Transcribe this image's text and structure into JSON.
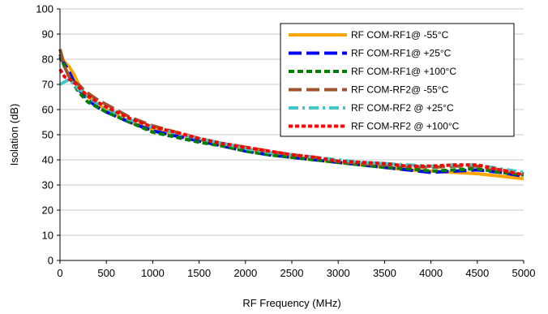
{
  "chart_data": {
    "type": "line",
    "title": "",
    "xlabel": "RF Frequency (MHz)",
    "ylabel": "Isolation (dB)",
    "xlim": [
      0,
      5000
    ],
    "ylim": [
      0,
      100
    ],
    "xticks": [
      0,
      500,
      1000,
      1500,
      2000,
      2500,
      3000,
      3500,
      4000,
      4500,
      5000
    ],
    "yticks": [
      0,
      10,
      20,
      30,
      40,
      50,
      60,
      70,
      80,
      90,
      100
    ],
    "grid": {
      "horizontal": true,
      "vertical": false
    },
    "legend_position": "top-right",
    "series": [
      {
        "name": "RF COM-RF1@ -55°C",
        "color": "#FFA500",
        "dash": "solid",
        "x": [
          0,
          50,
          100,
          150,
          200,
          250,
          300,
          400,
          500,
          750,
          1000,
          1250,
          1500,
          1750,
          2000,
          2250,
          2500,
          2750,
          3000,
          3250,
          3500,
          3750,
          4000,
          4250,
          4500,
          4750,
          5000
        ],
        "y": [
          80,
          79,
          77,
          74,
          70,
          67,
          65,
          62,
          60,
          55,
          52,
          50,
          48,
          46,
          44,
          42.5,
          41,
          40,
          39,
          38,
          37,
          36,
          35.5,
          35,
          34.5,
          33.5,
          32.5
        ]
      },
      {
        "name": "RF COM-RF1@ +25°C",
        "color": "#0000FF",
        "dash": "longdash",
        "x": [
          0,
          50,
          100,
          150,
          200,
          250,
          300,
          400,
          500,
          750,
          1000,
          1250,
          1500,
          1750,
          2000,
          2250,
          2500,
          2750,
          3000,
          3250,
          3500,
          3750,
          4000,
          4250,
          4500,
          4750,
          5000
        ],
        "y": [
          81,
          78,
          75,
          71,
          68,
          66,
          64,
          61,
          59,
          55,
          51.5,
          49.5,
          47.5,
          45.5,
          43.5,
          42,
          41,
          40,
          39,
          38,
          37,
          36,
          35,
          35.5,
          36,
          35,
          33.5
        ]
      },
      {
        "name": "RF COM-RF1@ +100°C",
        "color": "#008000",
        "dash": "dash",
        "x": [
          0,
          50,
          100,
          150,
          200,
          250,
          300,
          400,
          500,
          750,
          1000,
          1250,
          1500,
          1750,
          2000,
          2250,
          2500,
          2750,
          3000,
          3250,
          3500,
          3750,
          4000,
          4250,
          4500,
          4750,
          5000
        ],
        "y": [
          82,
          77,
          73,
          70,
          67,
          65,
          63,
          61,
          59,
          55,
          51,
          49,
          47,
          45.5,
          43.5,
          42,
          41,
          40,
          39,
          38,
          37,
          36.5,
          35.5,
          36,
          36.5,
          35,
          34
        ]
      },
      {
        "name": "RF COM-RF2@ -55°C",
        "color": "#A0522D",
        "dash": "longdash",
        "x": [
          0,
          50,
          100,
          150,
          200,
          250,
          300,
          400,
          500,
          750,
          1000,
          1250,
          1500,
          1750,
          2000,
          2250,
          2500,
          2750,
          3000,
          3250,
          3500,
          3750,
          4000,
          4250,
          4500,
          4750,
          5000
        ],
        "y": [
          84,
          77,
          73,
          71,
          70,
          68,
          66.5,
          64,
          62,
          57,
          53.5,
          51,
          48.5,
          46.5,
          45,
          43.5,
          42,
          41,
          39.5,
          38.5,
          38,
          37.5,
          37,
          37.5,
          37.5,
          36,
          34.5
        ]
      },
      {
        "name": "RF COM-RF2 @ +25°C",
        "color": "#40C8C8",
        "dash": "dashdot",
        "x": [
          0,
          50,
          100,
          150,
          200,
          250,
          300,
          400,
          500,
          750,
          1000,
          1250,
          1500,
          1750,
          2000,
          2250,
          2500,
          2750,
          3000,
          3250,
          3500,
          3750,
          4000,
          4250,
          4500,
          4750,
          5000
        ],
        "y": [
          70,
          71,
          72,
          70,
          68,
          67,
          65,
          62.5,
          60.5,
          56,
          53,
          50.5,
          48.5,
          46.5,
          44.5,
          43,
          42,
          41,
          40,
          39,
          38.5,
          38,
          37.5,
          38,
          38,
          36.5,
          35
        ]
      },
      {
        "name": "RF COM-RF2 @ +100°C",
        "color": "#FF0000",
        "dash": "shortdash",
        "x": [
          0,
          50,
          100,
          150,
          200,
          250,
          300,
          400,
          500,
          750,
          1000,
          1250,
          1500,
          1750,
          2000,
          2250,
          2500,
          2750,
          3000,
          3250,
          3500,
          3750,
          4000,
          4250,
          4500,
          4750,
          5000
        ],
        "y": [
          76,
          73,
          72,
          71,
          69,
          67,
          65.5,
          63,
          61,
          56.5,
          53,
          51,
          48.5,
          46.5,
          45,
          43.5,
          42,
          41,
          39.5,
          39,
          38.5,
          37.5,
          37.5,
          38,
          38,
          36,
          34
        ]
      }
    ]
  }
}
